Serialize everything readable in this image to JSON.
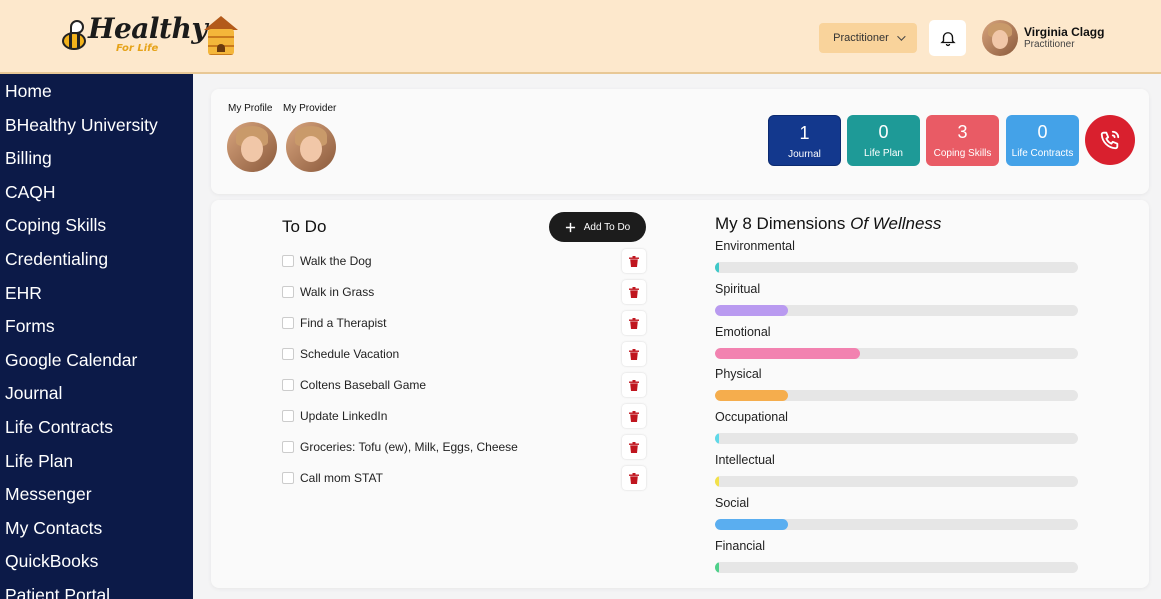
{
  "header": {
    "logo_title": "Healthy",
    "logo_sub": "For Life",
    "role_dropdown": "Practitioner",
    "user_name": "Virginia Clagg",
    "user_role": "Practitioner"
  },
  "sidebar": {
    "items": [
      "Home",
      "BHealthy University",
      "Billing",
      "CAQH",
      "Coping Skills",
      "Credentialing",
      "EHR",
      "Forms",
      "Google Calendar",
      "Journal",
      "Life Contracts",
      "Life Plan",
      "Messenger",
      "My Contacts",
      "QuickBooks",
      "Patient Portal"
    ]
  },
  "profile": {
    "my_profile_label": "My Profile",
    "my_provider_label": "My Provider"
  },
  "stats": [
    {
      "count": "1",
      "label": "Journal",
      "color": "#13388d"
    },
    {
      "count": "0",
      "label": "Life Plan",
      "color": "#1e9a97"
    },
    {
      "count": "3",
      "label": "Coping Skills",
      "color": "#e95b65"
    },
    {
      "count": "0",
      "label": "Life Contracts",
      "color": "#44a2e8"
    }
  ],
  "todo": {
    "title": "To Do",
    "add_label": "Add To Do",
    "items": [
      "Walk the Dog",
      "Walk in Grass",
      "Find a Therapist",
      "Schedule Vacation",
      "Coltens Baseball Game",
      "Update LinkedIn",
      "Groceries: Tofu (ew), Milk, Eggs, Cheese",
      "Call mom STAT"
    ]
  },
  "dimensions": {
    "title": "My 8 Dimensions",
    "title_italic": "Of Wellness",
    "items": [
      {
        "name": "Environmental",
        "level": 0.01,
        "color": "#3fc8c8"
      },
      {
        "name": "Spiritual",
        "level": 0.2,
        "color": "#b99af0"
      },
      {
        "name": "Emotional",
        "level": 0.4,
        "color": "#f282b0"
      },
      {
        "name": "Physical",
        "level": 0.2,
        "color": "#f5ad4d"
      },
      {
        "name": "Occupational",
        "level": 0.01,
        "color": "#5fd8e8"
      },
      {
        "name": "Intellectual",
        "level": 0.01,
        "color": "#f2e14a"
      },
      {
        "name": "Social",
        "level": 0.2,
        "color": "#5aaef0"
      },
      {
        "name": "Financial",
        "level": 0.01,
        "color": "#4fd08a"
      }
    ]
  }
}
